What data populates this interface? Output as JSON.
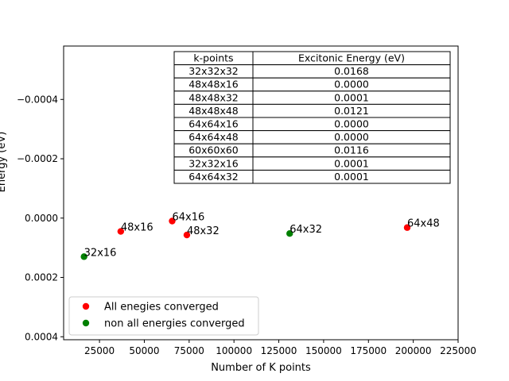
{
  "chart_data": {
    "type": "scatter",
    "xlabel": "Number of K points",
    "ylabel": "Energy (eV)",
    "xlim": [
      5000,
      225000
    ],
    "ylim": [
      0.00041,
      -0.00058
    ],
    "y_inverted": true,
    "x_ticks": [
      25000,
      50000,
      75000,
      100000,
      125000,
      150000,
      175000,
      200000,
      225000
    ],
    "x_tick_labels": [
      "25000",
      "50000",
      "75000",
      "100000",
      "125000",
      "150000",
      "175000",
      "200000",
      "225000"
    ],
    "y_ticks": [
      -0.0004,
      -0.0002,
      0.0,
      0.0002,
      0.0004
    ],
    "y_tick_labels": [
      "−0.0004",
      "−0.0002",
      "0.0000",
      "0.0002",
      "0.0004"
    ],
    "series": [
      {
        "name": "All enegies converged",
        "color": "#ff0000",
        "points": [
          {
            "x": 36864,
            "y": 4.5e-05,
            "label": "48x16"
          },
          {
            "x": 65536,
            "y": 1e-05,
            "label": "64x16"
          },
          {
            "x": 73728,
            "y": 5.7e-05,
            "label": "48x32"
          },
          {
            "x": 196608,
            "y": 3.2e-05,
            "label": "64x48"
          }
        ]
      },
      {
        "name": "non all energies converged",
        "color": "#008000",
        "points": [
          {
            "x": 16384,
            "y": 0.00013,
            "label": "32x16"
          },
          {
            "x": 131072,
            "y": 5.2e-05,
            "label": "64x32"
          }
        ]
      }
    ],
    "legend_position": "lower-left",
    "table": {
      "headers": [
        "k-points",
        "Excitonic Energy (eV)"
      ],
      "rows": [
        [
          "32x32x32",
          "0.0168"
        ],
        [
          "48x48x16",
          "0.0000"
        ],
        [
          "48x48x32",
          "0.0001"
        ],
        [
          "48x48x48",
          "0.0121"
        ],
        [
          "64x64x16",
          "0.0000"
        ],
        [
          "64x64x48",
          "0.0000"
        ],
        [
          "60x60x60",
          "0.0116"
        ],
        [
          "32x32x16",
          "0.0001"
        ],
        [
          "64x64x32",
          "0.0001"
        ]
      ]
    }
  }
}
